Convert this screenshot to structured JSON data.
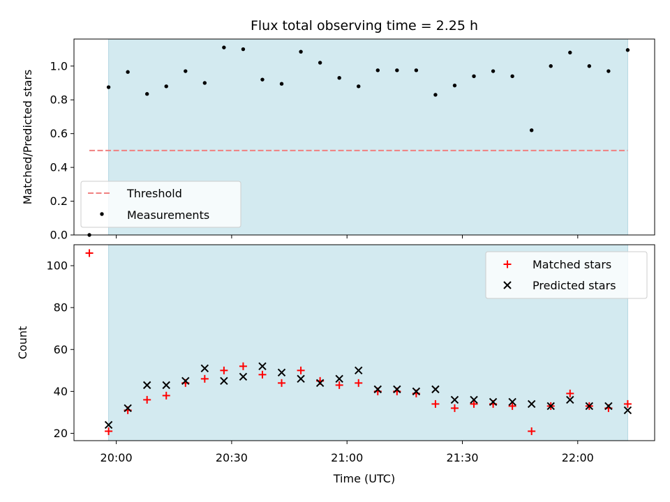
{
  "chart_data": [
    {
      "type": "scatter",
      "title": "Flux total observing time = 2.25 h",
      "ylabel": "Matched/Predicted stars",
      "ylim": [
        0,
        1.16
      ],
      "yticks": [
        0.0,
        0.2,
        0.4,
        0.6,
        0.8,
        1.0
      ],
      "ytick_labels": [
        "0.0",
        "0.2",
        "0.4",
        "0.6",
        "0.8",
        "1.0"
      ],
      "xlim": [
        "19:49",
        "22:20"
      ],
      "observing_window": [
        "19:58",
        "22:13"
      ],
      "threshold": {
        "name": "Threshold",
        "value": 0.5,
        "color": "#f08080",
        "style": "dashed"
      },
      "legend_position": "lower-left",
      "series": [
        {
          "name": "Measurements",
          "color": "#000000",
          "marker": "dot",
          "x": [
            "19:53",
            "19:58",
            "20:03",
            "20:08",
            "20:13",
            "20:18",
            "20:23",
            "20:28",
            "20:33",
            "20:38",
            "20:43",
            "20:48",
            "20:53",
            "20:58",
            "21:03",
            "21:08",
            "21:13",
            "21:18",
            "21:23",
            "21:28",
            "21:33",
            "21:38",
            "21:43",
            "21:48",
            "21:53",
            "21:58",
            "22:03",
            "22:08",
            "22:13"
          ],
          "y": [
            0.0,
            0.875,
            0.965,
            0.835,
            0.88,
            0.97,
            0.9,
            1.11,
            1.1,
            0.92,
            0.895,
            1.085,
            1.02,
            0.93,
            0.88,
            0.975,
            0.975,
            0.975,
            0.83,
            0.885,
            0.94,
            0.97,
            0.94,
            0.62,
            1.0,
            1.08,
            1.0,
            0.97,
            1.095
          ]
        }
      ]
    },
    {
      "type": "scatter",
      "xlabel": "Time (UTC)",
      "ylabel": "Count",
      "ylim": [
        16.5,
        110
      ],
      "yticks": [
        20,
        40,
        60,
        80,
        100
      ],
      "ytick_labels": [
        "20",
        "40",
        "60",
        "80",
        "100"
      ],
      "xlim": [
        "19:49",
        "22:20"
      ],
      "xticks": [
        "20:00",
        "20:30",
        "21:00",
        "21:30",
        "22:00"
      ],
      "observing_window": [
        "19:58",
        "22:13"
      ],
      "legend_position": "upper-right",
      "series": [
        {
          "name": "Matched stars",
          "color": "#ff0000",
          "marker": "plus",
          "x": [
            "19:53",
            "19:58",
            "20:03",
            "20:08",
            "20:13",
            "20:18",
            "20:23",
            "20:28",
            "20:33",
            "20:38",
            "20:43",
            "20:48",
            "20:53",
            "20:58",
            "21:03",
            "21:08",
            "21:13",
            "21:18",
            "21:23",
            "21:28",
            "21:33",
            "21:38",
            "21:43",
            "21:48",
            "21:53",
            "21:58",
            "22:03",
            "22:08",
            "22:13"
          ],
          "y": [
            106,
            21,
            31,
            36,
            38,
            44,
            46,
            50,
            52,
            48,
            44,
            50,
            45,
            43,
            44,
            40,
            40,
            39,
            34,
            32,
            34,
            34,
            33,
            21,
            33,
            39,
            33,
            32,
            34
          ]
        },
        {
          "name": "Predicted stars",
          "color": "#000000",
          "marker": "x",
          "x": [
            "19:58",
            "20:03",
            "20:08",
            "20:13",
            "20:18",
            "20:23",
            "20:28",
            "20:33",
            "20:38",
            "20:43",
            "20:48",
            "20:53",
            "20:58",
            "21:03",
            "21:08",
            "21:13",
            "21:18",
            "21:23",
            "21:28",
            "21:33",
            "21:38",
            "21:43",
            "21:48",
            "21:53",
            "21:58",
            "22:03",
            "22:08",
            "22:13"
          ],
          "y": [
            24,
            32,
            43,
            43,
            45,
            51,
            45,
            47,
            52,
            49,
            46,
            44,
            46,
            50,
            41,
            41,
            40,
            41,
            36,
            36,
            35,
            35,
            34,
            33,
            36,
            33,
            33,
            31
          ]
        }
      ]
    }
  ],
  "colors": {
    "window": "#d3eaf0",
    "window_edge": "#b4d7e3"
  }
}
